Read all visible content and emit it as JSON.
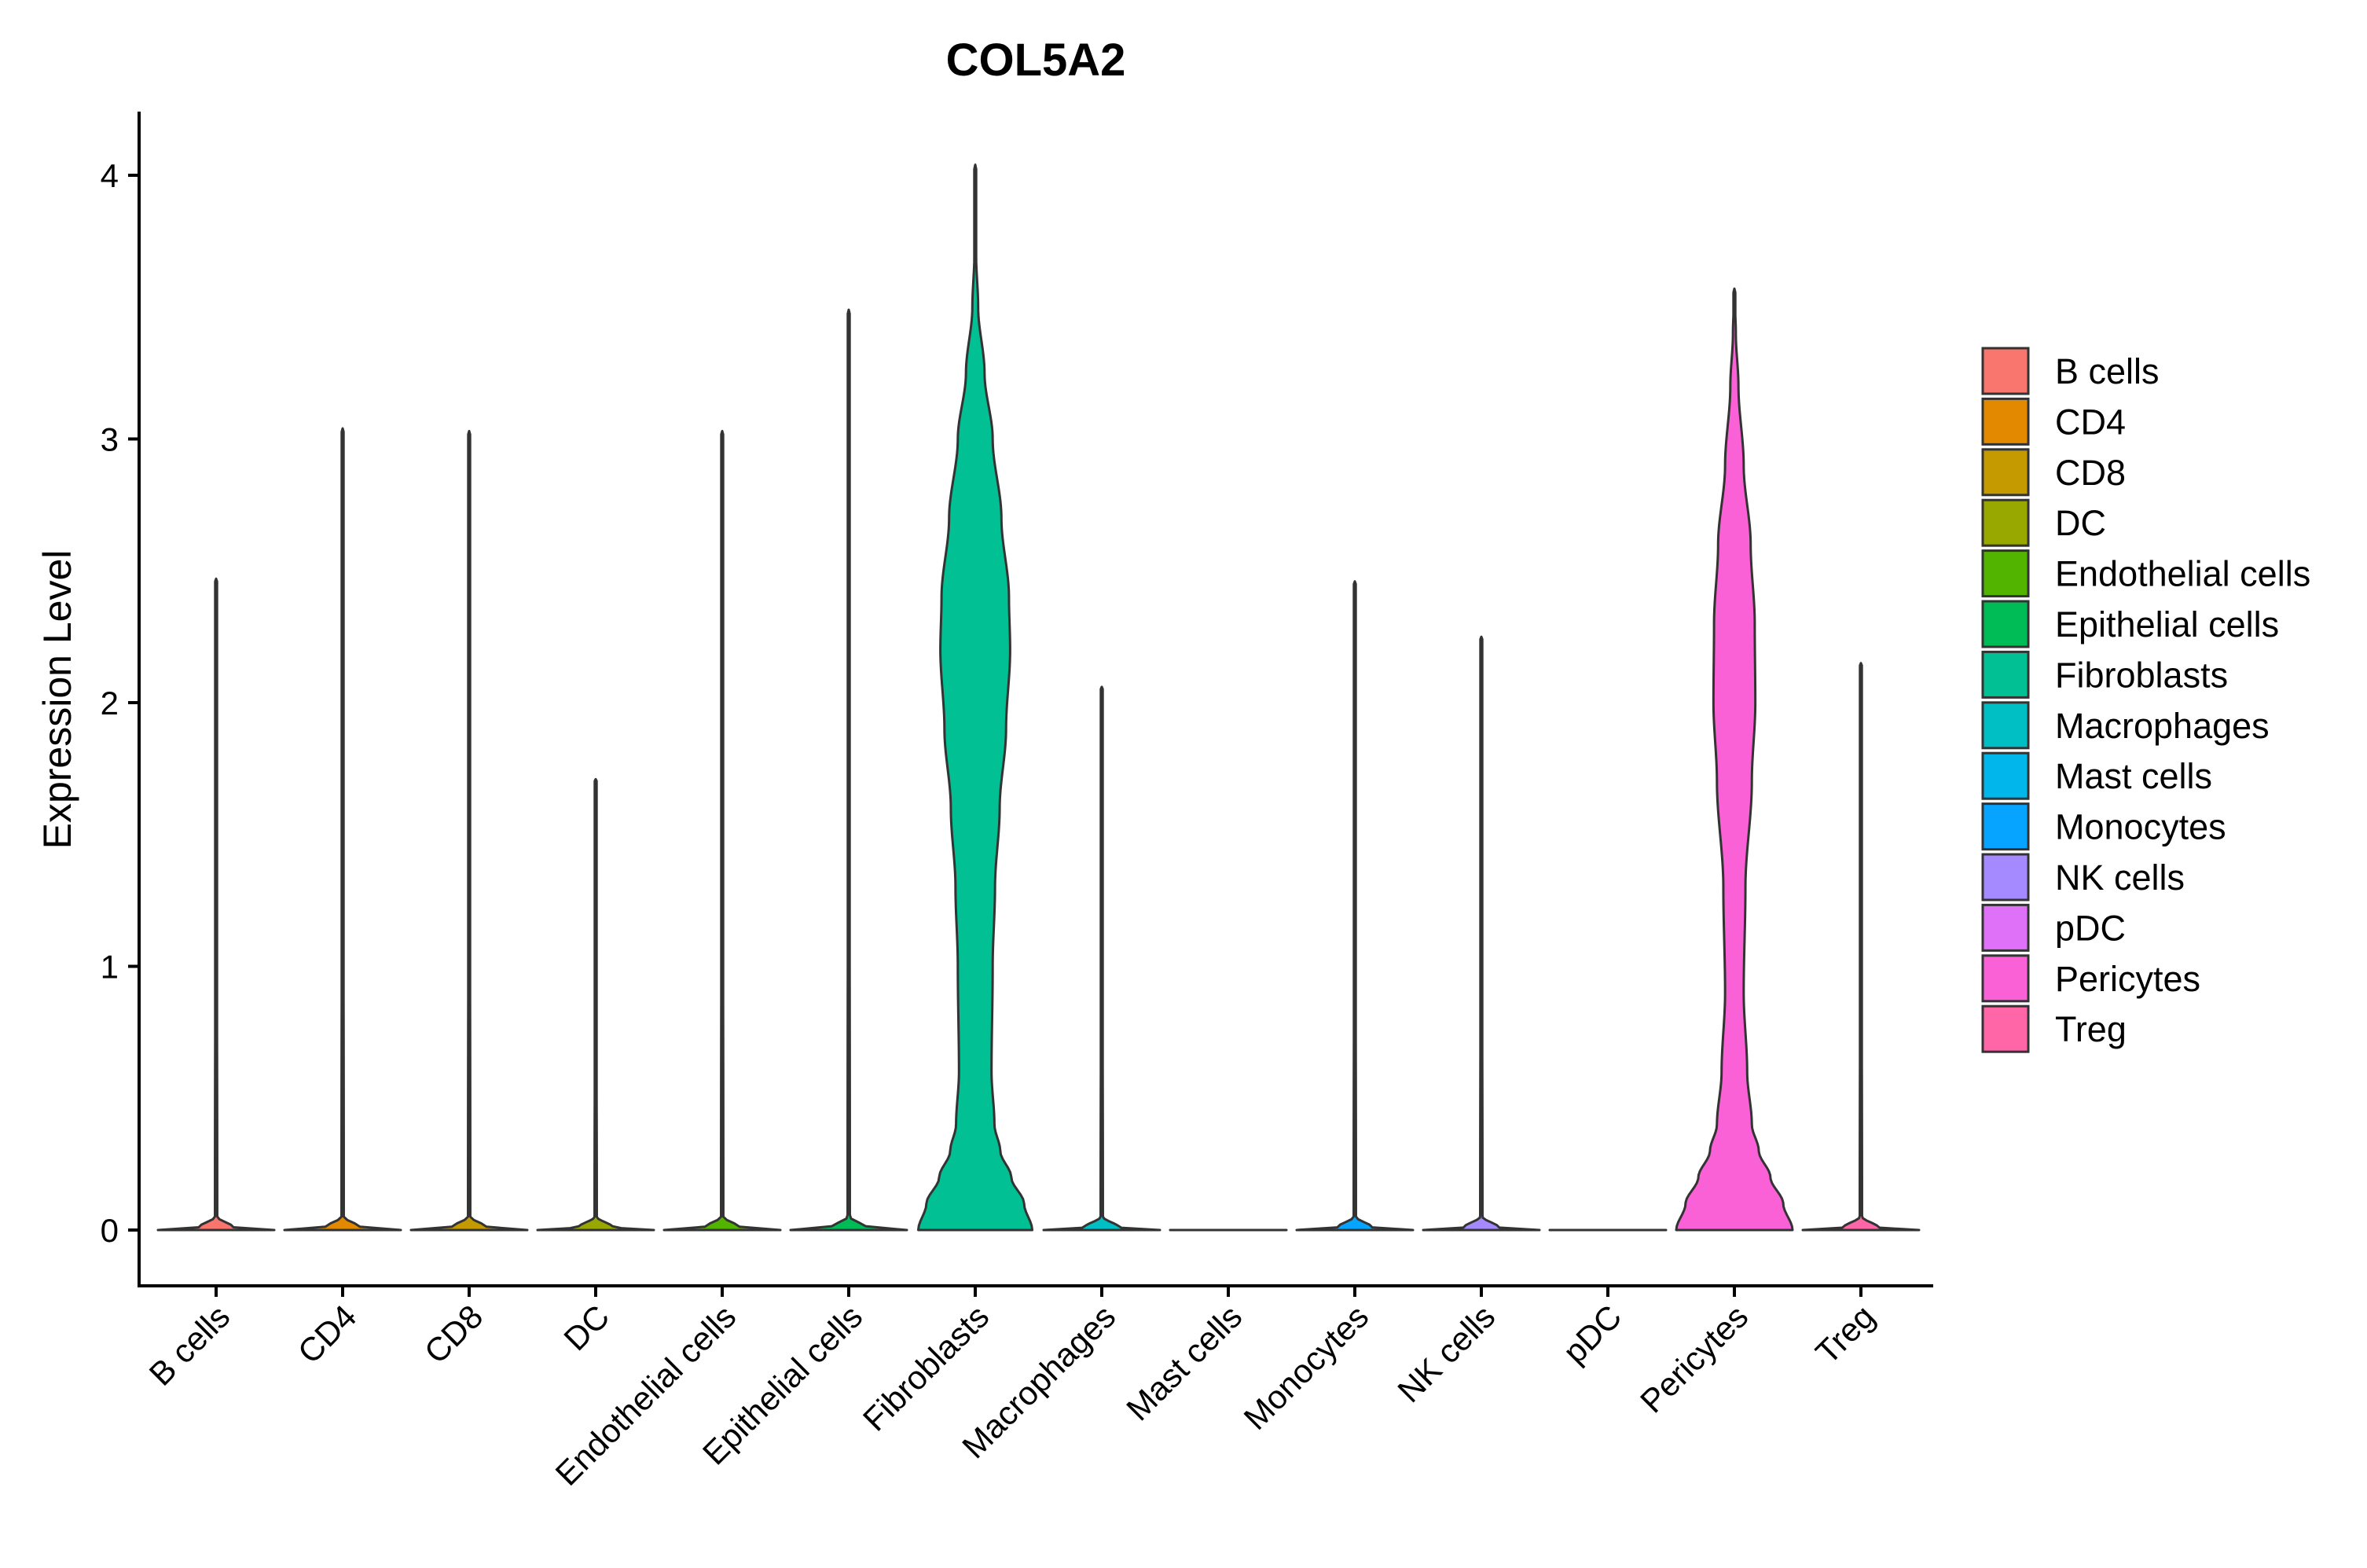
{
  "chart_data": {
    "type": "violin",
    "title": "COL5A2",
    "xlabel": "",
    "ylabel": "Expression Level",
    "ylim": [
      -0.2,
      4.25
    ],
    "yticks": [
      0,
      1,
      2,
      3,
      4
    ],
    "categories": [
      "B cells",
      "CD4",
      "CD8",
      "DC",
      "Endothelial cells",
      "Epithelial cells",
      "Fibroblasts",
      "Macrophages",
      "Mast cells",
      "Monocytes",
      "NK cells",
      "pDC",
      "Pericytes",
      "Treg"
    ],
    "colors": [
      "#F8766D",
      "#E38900",
      "#C49A00",
      "#99A800",
      "#53B400",
      "#00BC56",
      "#00C094",
      "#00BFC4",
      "#00B6EB",
      "#06A4FF",
      "#A58AFF",
      "#DF70F8",
      "#FB61D7",
      "#FF66A8"
    ],
    "series": [
      {
        "name": "B cells",
        "max": 2.47,
        "profile": [
          [
            0,
            1.0
          ],
          [
            0.01,
            0.3
          ],
          [
            0.05,
            0.02
          ],
          [
            2.47,
            0.0
          ]
        ]
      },
      {
        "name": "CD4",
        "max": 3.04,
        "profile": [
          [
            0,
            1.0
          ],
          [
            0.01,
            0.3
          ],
          [
            0.05,
            0.02
          ],
          [
            3.04,
            0.0
          ]
        ]
      },
      {
        "name": "CD8",
        "max": 3.03,
        "profile": [
          [
            0,
            1.0
          ],
          [
            0.01,
            0.3
          ],
          [
            0.05,
            0.02
          ],
          [
            3.03,
            0.0
          ]
        ]
      },
      {
        "name": "DC",
        "max": 1.71,
        "profile": [
          [
            0,
            1.0
          ],
          [
            0.01,
            0.3
          ],
          [
            0.05,
            0.02
          ],
          [
            1.71,
            0.0
          ]
        ]
      },
      {
        "name": "Endothelial cells",
        "max": 3.03,
        "profile": [
          [
            0,
            1.0
          ],
          [
            0.01,
            0.3
          ],
          [
            0.05,
            0.02
          ],
          [
            3.03,
            0.0
          ]
        ]
      },
      {
        "name": "Epithelial cells",
        "max": 3.49,
        "profile": [
          [
            0,
            1.0
          ],
          [
            0.01,
            0.3
          ],
          [
            0.05,
            0.02
          ],
          [
            3.49,
            0.0
          ]
        ]
      },
      {
        "name": "Fibroblasts",
        "max": 4.04,
        "profile": [
          [
            0,
            0.98
          ],
          [
            0.1,
            0.84
          ],
          [
            0.2,
            0.62
          ],
          [
            0.3,
            0.43
          ],
          [
            0.4,
            0.33
          ],
          [
            0.6,
            0.28
          ],
          [
            1.0,
            0.3
          ],
          [
            1.3,
            0.34
          ],
          [
            1.6,
            0.42
          ],
          [
            1.9,
            0.53
          ],
          [
            2.2,
            0.6
          ],
          [
            2.4,
            0.58
          ],
          [
            2.7,
            0.45
          ],
          [
            3.0,
            0.3
          ],
          [
            3.25,
            0.16
          ],
          [
            3.5,
            0.05
          ],
          [
            3.7,
            0.015
          ],
          [
            4.04,
            0.0
          ]
        ]
      },
      {
        "name": "Macrophages",
        "max": 2.06,
        "profile": [
          [
            0,
            1.0
          ],
          [
            0.01,
            0.3
          ],
          [
            0.05,
            0.02
          ],
          [
            2.06,
            0.0
          ]
        ]
      },
      {
        "name": "Mast cells",
        "max": 0.0,
        "profile": [
          [
            0,
            1.0
          ]
        ]
      },
      {
        "name": "Monocytes",
        "max": 2.46,
        "profile": [
          [
            0,
            1.0
          ],
          [
            0.01,
            0.3
          ],
          [
            0.05,
            0.02
          ],
          [
            2.46,
            0.0
          ]
        ]
      },
      {
        "name": "NK cells",
        "max": 2.25,
        "profile": [
          [
            0,
            1.0
          ],
          [
            0.01,
            0.3
          ],
          [
            0.05,
            0.02
          ],
          [
            2.25,
            0.0
          ]
        ]
      },
      {
        "name": "pDC",
        "max": 0.0,
        "profile": [
          [
            0,
            1.0
          ]
        ]
      },
      {
        "name": "Pericytes",
        "max": 3.57,
        "profile": [
          [
            0,
            1.0
          ],
          [
            0.1,
            0.84
          ],
          [
            0.2,
            0.62
          ],
          [
            0.3,
            0.42
          ],
          [
            0.4,
            0.3
          ],
          [
            0.6,
            0.22
          ],
          [
            0.9,
            0.16
          ],
          [
            1.3,
            0.19
          ],
          [
            1.7,
            0.3
          ],
          [
            2.0,
            0.36
          ],
          [
            2.3,
            0.35
          ],
          [
            2.6,
            0.28
          ],
          [
            2.9,
            0.16
          ],
          [
            3.2,
            0.07
          ],
          [
            3.4,
            0.025
          ],
          [
            3.57,
            0.0
          ]
        ]
      },
      {
        "name": "Treg",
        "max": 2.15,
        "profile": [
          [
            0,
            1.0
          ],
          [
            0.01,
            0.3
          ],
          [
            0.05,
            0.02
          ],
          [
            2.15,
            0.0
          ]
        ]
      }
    ],
    "legend": {
      "position": "right",
      "entries": [
        "B cells",
        "CD4",
        "CD8",
        "DC",
        "Endothelial cells",
        "Epithelial cells",
        "Fibroblasts",
        "Macrophages",
        "Mast cells",
        "Monocytes",
        "NK cells",
        "pDC",
        "Pericytes",
        "Treg"
      ]
    },
    "grid": false
  }
}
